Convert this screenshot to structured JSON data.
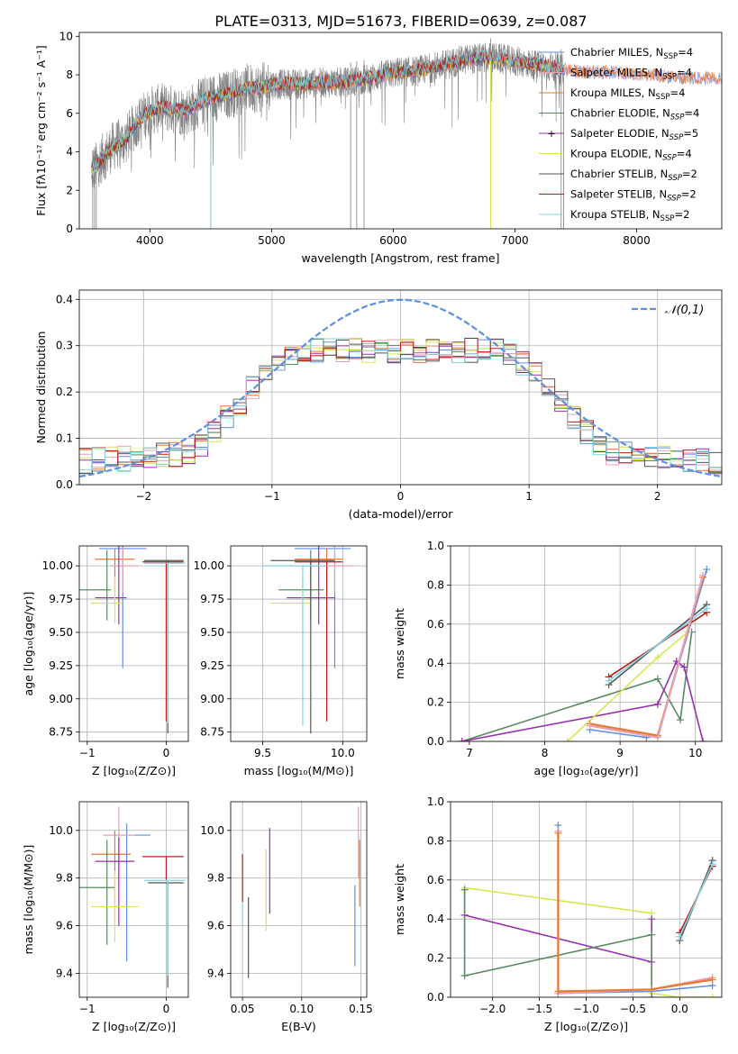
{
  "title": "PLATE=0313, MJD=51673, FIBERID=0639, z=0.087",
  "colors": {
    "chabrier_miles": "#5f8fe0",
    "salpeter_miles": "#e8a0b4",
    "kroupa_miles": "#e87a2e",
    "chabrier_elodie": "#5a8a60",
    "salpeter_elodie": "#9a2fb0",
    "kroupa_elodie": "#d4e850",
    "chabrier_stelib": "#555555",
    "salpeter_stelib": "#c01818",
    "kroupa_stelib": "#80d4e0",
    "grid": "#b0b0b0",
    "data_spectrum": "#808080"
  },
  "legend": [
    {
      "key": "chabrier_miles",
      "label": "Chabrier MILES, N",
      "sub": "SSP",
      "suffix": "=4",
      "subItalic": false
    },
    {
      "key": "salpeter_miles",
      "label": "Salpeter MILES, N",
      "sub": "SSP",
      "suffix": "=4",
      "subItalic": false
    },
    {
      "key": "kroupa_miles",
      "label": "Kroupa MILES, N",
      "sub": "SSP",
      "suffix": "=4",
      "subItalic": false
    },
    {
      "key": "chabrier_elodie",
      "label": "Chabrier ELODIE, N",
      "sub": "SSP",
      "suffix": "=4",
      "subItalic": true
    },
    {
      "key": "salpeter_elodie",
      "label": "Salpeter ELODIE, N",
      "sub": "SSP",
      "suffix": "=5",
      "subItalic": true
    },
    {
      "key": "kroupa_elodie",
      "label": "Kroupa ELODIE, N",
      "sub": "SSP",
      "suffix": "=4",
      "subItalic": true
    },
    {
      "key": "chabrier_stelib",
      "label": "Chabrier STELIB, N",
      "sub": "SSP",
      "suffix": "=2",
      "subItalic": true
    },
    {
      "key": "salpeter_stelib",
      "label": "Salpeter STELIB, N",
      "sub": "SSP",
      "suffix": "=2",
      "subItalic": true
    },
    {
      "key": "kroupa_stelib",
      "label": "Kroupa STELIB, N",
      "sub": "SSP",
      "suffix": "=2",
      "subItalic": false
    }
  ],
  "chart_data": [
    {
      "id": "spectrum",
      "type": "line",
      "xlabel": "wavelength [Angstrom, rest frame]",
      "ylabel": "Flux [fλ10⁻¹⁷ erg cm⁻² s⁻¹ A⁻¹]",
      "xlim": [
        3420,
        8700
      ],
      "ylim": [
        0,
        10.2
      ],
      "xticks": [
        4000,
        5000,
        6000,
        7000,
        8000
      ],
      "yticks": [
        0,
        2,
        4,
        6,
        8,
        10
      ],
      "grid": false,
      "continuum": {
        "x": [
          3520,
          3550,
          3600,
          3700,
          3800,
          3900,
          4000,
          4100,
          4200,
          4300,
          4400,
          4500,
          4600,
          4700,
          4800,
          4900,
          5000,
          5200,
          5400,
          5600,
          5800,
          6000,
          6200,
          6400,
          6600,
          6800,
          7000,
          7200,
          7400,
          7600,
          7800,
          8000,
          8200,
          8400
        ],
        "y": [
          3.0,
          3.2,
          3.6,
          4.3,
          4.6,
          5.6,
          6.1,
          6.3,
          6.2,
          6.1,
          6.5,
          6.8,
          6.9,
          7.1,
          7.3,
          7.3,
          7.5,
          7.5,
          7.6,
          7.6,
          7.8,
          8.1,
          8.2,
          8.5,
          8.8,
          8.9,
          8.7,
          8.5,
          8.3,
          8.2,
          8.2,
          8.1,
          8.0,
          7.9
        ]
      },
      "data_x_range": [
        3520,
        7400
      ],
      "absorption_lines": [
        3530,
        3545,
        3560,
        4500,
        5650,
        5700,
        5760,
        6800,
        7380
      ],
      "legend_position": "upper-right"
    },
    {
      "id": "residuals",
      "type": "step",
      "xlabel": "(data-model)/error",
      "ylabel": "Normed distribution",
      "xlim": [
        -2.5,
        2.5
      ],
      "ylim": [
        0,
        0.42
      ],
      "xticks": [
        -2,
        -1,
        0,
        1,
        2
      ],
      "yticks": [
        0.0,
        0.1,
        0.2,
        0.3,
        0.4
      ],
      "grid": true,
      "gaussian_label": "𝒩(0,1)",
      "legend_position": "upper-right",
      "bin_width": 0.1
    },
    {
      "id": "age_vs_Z",
      "type": "errorbar",
      "xlabel": "Z [log₁₀(Z/Z⊙)]",
      "ylabel": "age  [log₁₀(age/yr)]",
      "xlim": [
        -1.1,
        0.28
      ],
      "ylim": [
        8.68,
        10.15
      ],
      "xticks": [
        -1,
        0
      ],
      "yticks": [
        8.75,
        9.0,
        9.25,
        9.5,
        9.75,
        10.0
      ],
      "grid": true,
      "points": [
        {
          "key": "chabrier_miles",
          "x": -0.55,
          "y": 10.13,
          "xerr": [
            0.3,
            0.3
          ],
          "yerr": [
            0.9,
            0.02
          ]
        },
        {
          "key": "kroupa_miles",
          "x": -0.65,
          "y": 10.05,
          "xerr": [
            0.25,
            0.25
          ],
          "yerr": [
            0.25,
            0.08
          ]
        },
        {
          "key": "salpeter_miles",
          "x": -0.55,
          "y": 10.0,
          "xerr": [
            0.15,
            0.2
          ],
          "yerr": [
            0.2,
            0.15
          ]
        },
        {
          "key": "chabrier_elodie",
          "x": -0.75,
          "y": 9.82,
          "xerr": [
            0.35,
            0.05
          ],
          "yerr": [
            0.23,
            0.3
          ]
        },
        {
          "key": "salpeter_elodie",
          "x": -0.6,
          "y": 9.76,
          "xerr": [
            0.3,
            0.1
          ],
          "yerr": [
            0.2,
            0.4
          ]
        },
        {
          "key": "kroupa_elodie",
          "x": -0.65,
          "y": 9.72,
          "xerr": [
            0.3,
            0.1
          ],
          "yerr": [
            0.15,
            0.2
          ]
        },
        {
          "key": "chabrier_stelib",
          "x": 0.02,
          "y": 10.04,
          "xerr": [
            0.3,
            0.2
          ],
          "yerr": [
            1.3,
            0.0
          ]
        },
        {
          "key": "salpeter_stelib",
          "x": 0.0,
          "y": 10.03,
          "xerr": [
            0.3,
            0.22
          ],
          "yerr": [
            1.2,
            0.0
          ]
        },
        {
          "key": "kroupa_stelib",
          "x": 0.02,
          "y": 10.02,
          "xerr": [
            0.3,
            0.22
          ],
          "yerr": [
            1.2,
            0.0
          ]
        }
      ]
    },
    {
      "id": "age_vs_mass",
      "type": "errorbar",
      "xlabel": "mass [log₁₀(M/M⊙)]",
      "ylabel": "",
      "xlim": [
        9.3,
        10.15
      ],
      "ylim": [
        8.68,
        10.15
      ],
      "xticks": [
        9.5,
        10.0
      ],
      "yticks": [
        8.75,
        9.0,
        9.25,
        9.5,
        9.75,
        10.0
      ],
      "grid": true,
      "points": [
        {
          "key": "chabrier_miles",
          "x": 9.95,
          "y": 10.13,
          "xerr": [
            0.25,
            0.1
          ],
          "yerr": [
            0.9,
            0.02
          ]
        },
        {
          "key": "kroupa_miles",
          "x": 9.9,
          "y": 10.05,
          "xerr": [
            0.2,
            0.1
          ],
          "yerr": [
            0.25,
            0.08
          ]
        },
        {
          "key": "salpeter_miles",
          "x": 9.95,
          "y": 10.0,
          "xerr": [
            0.2,
            0.12
          ],
          "yerr": [
            0.2,
            0.15
          ]
        },
        {
          "key": "chabrier_elodie",
          "x": 9.8,
          "y": 9.82,
          "xerr": [
            0.2,
            0.08
          ],
          "yerr": [
            0.23,
            0.3
          ]
        },
        {
          "key": "salpeter_elodie",
          "x": 9.85,
          "y": 9.76,
          "xerr": [
            0.2,
            0.1
          ],
          "yerr": [
            0.2,
            0.4
          ]
        },
        {
          "key": "kroupa_elodie",
          "x": 9.75,
          "y": 9.72,
          "xerr": [
            0.2,
            0.05
          ],
          "yerr": [
            0.15,
            0.2
          ]
        },
        {
          "key": "chabrier_stelib",
          "x": 9.8,
          "y": 10.04,
          "xerr": [
            0.25,
            0.15
          ],
          "yerr": [
            1.3,
            0.0
          ]
        },
        {
          "key": "salpeter_stelib",
          "x": 9.9,
          "y": 10.03,
          "xerr": [
            0.2,
            0.1
          ],
          "yerr": [
            1.2,
            0.0
          ]
        },
        {
          "key": "kroupa_stelib",
          "x": 9.75,
          "y": 10.0,
          "xerr": [
            0.25,
            0.15
          ],
          "yerr": [
            1.2,
            0.0
          ]
        }
      ]
    },
    {
      "id": "weight_vs_age",
      "type": "line",
      "xlabel": "age  [log₁₀(age/yr)]",
      "ylabel": "mass weight",
      "xlim": [
        6.75,
        10.35
      ],
      "ylim": [
        0,
        1.0
      ],
      "xticks": [
        7,
        8,
        9,
        10
      ],
      "yticks": [
        0.0,
        0.2,
        0.4,
        0.6,
        0.8,
        1.0
      ],
      "grid": true,
      "series": [
        {
          "key": "chabrier_elodie",
          "x": [
            6.9,
            9.5,
            9.8,
            9.95
          ],
          "y": [
            0.0,
            0.32,
            0.11,
            0.56
          ]
        },
        {
          "key": "salpeter_elodie",
          "x": [
            6.9,
            9.5,
            9.75,
            9.85,
            10.1
          ],
          "y": [
            0.0,
            0.19,
            0.41,
            0.38,
            0.0
          ]
        },
        {
          "key": "kroupa_elodie",
          "x": [
            8.3,
            9.5,
            9.9
          ],
          "y": [
            0.0,
            0.43,
            0.56
          ]
        },
        {
          "key": "chabrier_stelib",
          "x": [
            8.85,
            10.15
          ],
          "y": [
            0.29,
            0.7
          ]
        },
        {
          "key": "salpeter_stelib",
          "x": [
            8.85,
            10.15
          ],
          "y": [
            0.33,
            0.66
          ]
        },
        {
          "key": "kroupa_stelib",
          "x": [
            8.85,
            10.15
          ],
          "y": [
            0.31,
            0.68
          ]
        },
        {
          "key": "chabrier_miles",
          "x": [
            8.6,
            9.35,
            9.5,
            10.15
          ],
          "y": [
            0.06,
            0.02,
            0.03,
            0.88
          ]
        },
        {
          "key": "kroupa_miles",
          "x": [
            8.6,
            9.5,
            10.1
          ],
          "y": [
            0.09,
            0.03,
            0.84
          ]
        },
        {
          "key": "salpeter_miles",
          "x": [
            8.6,
            9.5,
            10.1
          ],
          "y": [
            0.08,
            0.02,
            0.85
          ]
        }
      ]
    },
    {
      "id": "mass_vs_Z",
      "type": "errorbar",
      "xlabel": "Z [log₁₀(Z/Z⊙)]",
      "ylabel": "mass [log₁₀(M/M⊙)]",
      "xlim": [
        -1.1,
        0.28
      ],
      "ylim": [
        9.3,
        10.12
      ],
      "xticks": [
        -1,
        0
      ],
      "yticks": [
        9.4,
        9.6,
        9.8,
        10.0
      ],
      "grid": true,
      "points": [
        {
          "key": "chabrier_miles",
          "x": -0.5,
          "y": 9.98,
          "xerr": [
            0.3,
            0.3
          ],
          "yerr": [
            0.53,
            0.05
          ]
        },
        {
          "key": "salpeter_miles",
          "x": -0.6,
          "y": 9.98,
          "xerr": [
            0.2,
            0.2
          ],
          "yerr": [
            0.2,
            0.12
          ]
        },
        {
          "key": "kroupa_miles",
          "x": -0.65,
          "y": 9.9,
          "xerr": [
            0.3,
            0.2
          ],
          "yerr": [
            0.3,
            0.1
          ]
        },
        {
          "key": "chabrier_elodie",
          "x": -0.75,
          "y": 9.76,
          "xerr": [
            0.35,
            0.1
          ],
          "yerr": [
            0.24,
            0.2
          ]
        },
        {
          "key": "salpeter_elodie",
          "x": -0.6,
          "y": 9.87,
          "xerr": [
            0.3,
            0.2
          ],
          "yerr": [
            0.27,
            0.1
          ]
        },
        {
          "key": "kroupa_elodie",
          "x": -0.65,
          "y": 9.68,
          "xerr": [
            0.3,
            0.3
          ],
          "yerr": [
            0.15,
            0.15
          ]
        },
        {
          "key": "chabrier_stelib",
          "x": 0.02,
          "y": 9.78,
          "xerr": [
            0.25,
            0.2
          ],
          "yerr": [
            0.44,
            0.0
          ]
        },
        {
          "key": "salpeter_stelib",
          "x": 0.0,
          "y": 9.89,
          "xerr": [
            0.3,
            0.22
          ],
          "yerr": [
            0.1,
            0.0
          ]
        },
        {
          "key": "kroupa_stelib",
          "x": 0.02,
          "y": 9.79,
          "xerr": [
            0.3,
            0.22
          ],
          "yerr": [
            0.4,
            0.0
          ]
        }
      ]
    },
    {
      "id": "mass_vs_ebv",
      "type": "errorbar",
      "xlabel": "E(B-V)",
      "ylabel": "",
      "xlim": [
        0.04,
        0.155
      ],
      "ylim": [
        9.3,
        10.12
      ],
      "xticks": [
        0.05,
        0.1,
        0.15
      ],
      "yticks": [
        9.4,
        9.6,
        9.8,
        10.0
      ],
      "grid": true,
      "points": [
        {
          "key": "kroupa_stelib",
          "x": 0.05,
          "y": 9.7,
          "xerr": [
            0,
            0
          ],
          "yerr": [
            0.1,
            0.1
          ]
        },
        {
          "key": "salpeter_stelib",
          "x": 0.05,
          "y": 9.8,
          "xerr": [
            0,
            0
          ],
          "yerr": [
            0.1,
            0.1
          ]
        },
        {
          "key": "chabrier_stelib",
          "x": 0.055,
          "y": 9.55,
          "xerr": [
            0,
            0
          ],
          "yerr": [
            0.17,
            0.17
          ]
        },
        {
          "key": "kroupa_elodie",
          "x": 0.07,
          "y": 9.75,
          "xerr": [
            0,
            0
          ],
          "yerr": [
            0.17,
            0.17
          ]
        },
        {
          "key": "salpeter_elodie",
          "x": 0.073,
          "y": 9.83,
          "xerr": [
            0,
            0
          ],
          "yerr": [
            0.18,
            0.18
          ]
        },
        {
          "key": "chabrier_miles",
          "x": 0.145,
          "y": 9.6,
          "xerr": [
            0,
            0
          ],
          "yerr": [
            0.17,
            0.17
          ]
        },
        {
          "key": "salpeter_miles",
          "x": 0.148,
          "y": 9.95,
          "xerr": [
            0,
            0
          ],
          "yerr": [
            0.15,
            0.15
          ]
        },
        {
          "key": "kroupa_miles",
          "x": 0.149,
          "y": 9.82,
          "xerr": [
            0,
            0
          ],
          "yerr": [
            0.14,
            0.14
          ]
        }
      ]
    },
    {
      "id": "weight_vs_Z",
      "type": "line",
      "xlabel": "Z [log₁₀(Z/Z⊙)]",
      "ylabel": "mass weight",
      "xlim": [
        -2.45,
        0.45
      ],
      "ylim": [
        0,
        1.0
      ],
      "xticks": [
        -2.0,
        -1.5,
        -1.0,
        -0.5,
        0.0
      ],
      "yticks": [
        0.0,
        0.2,
        0.4,
        0.6,
        0.8,
        1.0
      ],
      "grid": true,
      "series": [
        {
          "key": "kroupa_elodie",
          "x": [
            -2.3,
            -0.3,
            -0.3,
            0.0,
            0.35
          ],
          "y": [
            0.56,
            0.43,
            0.02,
            0.0,
            0.0
          ]
        },
        {
          "key": "salpeter_elodie",
          "x": [
            -2.3,
            -0.3,
            -0.3
          ],
          "y": [
            0.42,
            0.18,
            0.4
          ]
        },
        {
          "key": "chabrier_elodie",
          "x": [
            -2.3,
            -2.3,
            -0.3,
            -0.3
          ],
          "y": [
            0.55,
            0.11,
            0.32,
            0.0
          ]
        },
        {
          "key": "chabrier_miles",
          "x": [
            -1.3,
            -1.3,
            -0.3,
            0.35
          ],
          "y": [
            0.88,
            0.02,
            0.03,
            0.06
          ]
        },
        {
          "key": "salpeter_miles",
          "x": [
            -1.3,
            -1.3,
            -0.3,
            0.35
          ],
          "y": [
            0.85,
            0.02,
            0.04,
            0.1
          ]
        },
        {
          "key": "kroupa_miles",
          "x": [
            -1.3,
            -1.3,
            -0.3,
            0.35
          ],
          "y": [
            0.84,
            0.03,
            0.04,
            0.09
          ]
        },
        {
          "key": "chabrier_stelib",
          "x": [
            0.0,
            0.35
          ],
          "y": [
            0.29,
            0.7
          ]
        },
        {
          "key": "salpeter_stelib",
          "x": [
            0.0,
            0.35
          ],
          "y": [
            0.33,
            0.67
          ]
        },
        {
          "key": "kroupa_stelib",
          "x": [
            0.0,
            0.35
          ],
          "y": [
            0.31,
            0.68
          ]
        }
      ]
    }
  ]
}
